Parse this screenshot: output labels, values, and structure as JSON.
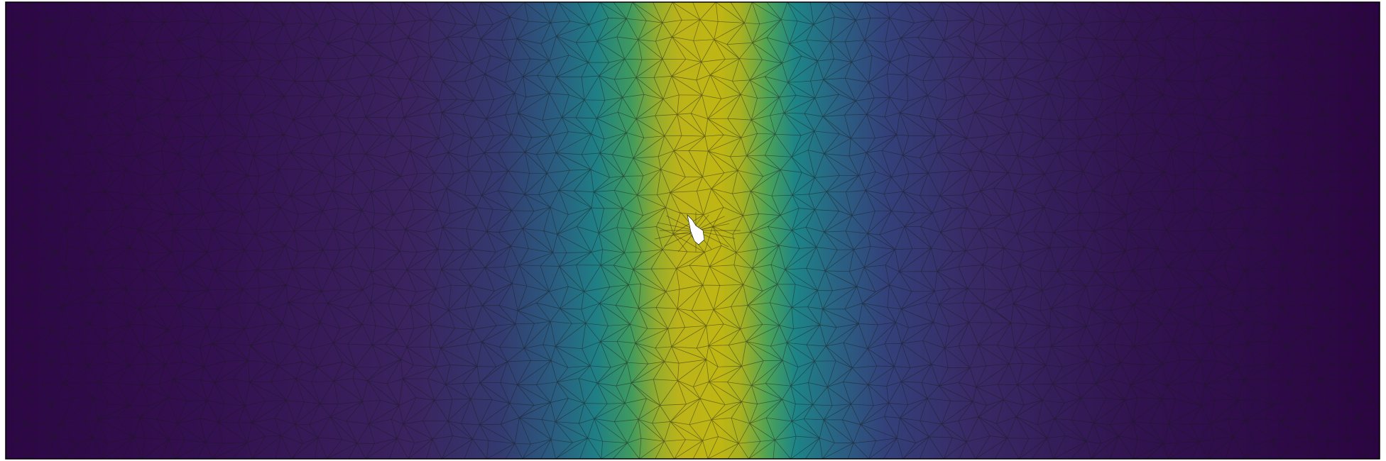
{
  "scene": {
    "kind": "finite-element-mesh-field",
    "colormap": {
      "name": "viridis",
      "stops": [
        "#440154",
        "#3b528b",
        "#21918c",
        "#5ec962",
        "#bfb614"
      ]
    },
    "edge_color": "#1a1a1a",
    "domain_border_color": "#000000",
    "hole_color": "#ffffff"
  }
}
